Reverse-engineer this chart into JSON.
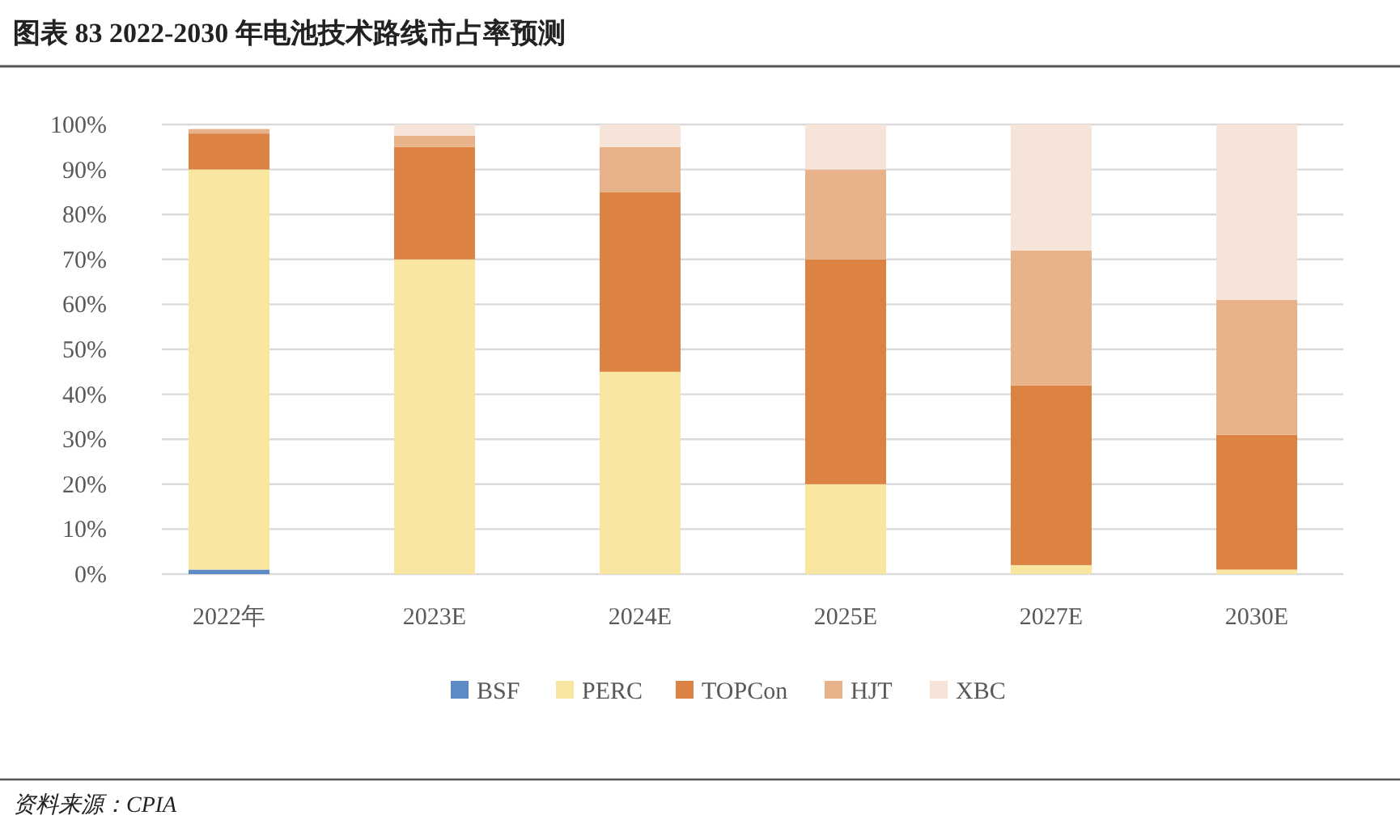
{
  "chart_data": {
    "type": "bar",
    "title": "图表 83    2022-2030 年电池技术路线市占率预测",
    "stacked": true,
    "categories": [
      "2022年",
      "2023E",
      "2024E",
      "2025E",
      "2027E",
      "2030E"
    ],
    "series": [
      {
        "name": "BSF",
        "color": "#5b8ac6",
        "values": [
          1,
          0,
          0,
          0,
          0,
          0
        ]
      },
      {
        "name": "PERC",
        "color": "#f9e6a0",
        "values": [
          89,
          70,
          45,
          20,
          2,
          1
        ]
      },
      {
        "name": "TOPCon",
        "color": "#dc8242",
        "values": [
          8,
          25,
          40,
          50,
          40,
          30
        ]
      },
      {
        "name": "HJT",
        "color": "#e8b38a",
        "values": [
          1,
          2.5,
          10,
          20,
          30,
          30
        ]
      },
      {
        "name": "XBC",
        "color": "#f6e4d8",
        "values": [
          0,
          2.5,
          5,
          10,
          28,
          39
        ]
      }
    ],
    "ylim": [
      0,
      100
    ],
    "yticks": [
      {
        "value": 0,
        "label": "0%"
      },
      {
        "value": 10,
        "label": "10%"
      },
      {
        "value": 20,
        "label": "20%"
      },
      {
        "value": 30,
        "label": "30%"
      },
      {
        "value": 40,
        "label": "40%"
      },
      {
        "value": 50,
        "label": "50%"
      },
      {
        "value": 60,
        "label": "60%"
      },
      {
        "value": 70,
        "label": "70%"
      },
      {
        "value": 80,
        "label": "80%"
      },
      {
        "value": 90,
        "label": "90%"
      },
      {
        "value": 100,
        "label": "100%"
      }
    ],
    "grid": "y",
    "legend": "bottom",
    "annotations": [
      "资料来源：CPIA"
    ]
  }
}
